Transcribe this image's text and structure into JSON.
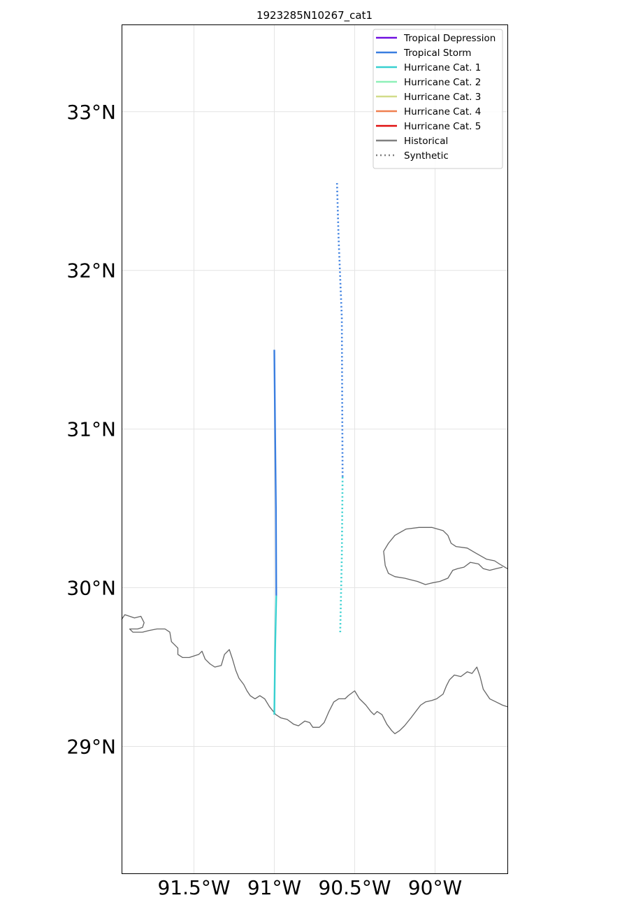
{
  "title": "1923285N10267_cat1",
  "map": {
    "lon_range": [
      -91.95,
      -89.55
    ],
    "lat_range": [
      28.2,
      33.55
    ],
    "grid": true,
    "lat_ticks": [
      {
        "value": 29,
        "label": "29°N"
      },
      {
        "value": 30,
        "label": "30°N"
      },
      {
        "value": 31,
        "label": "31°N"
      },
      {
        "value": 32,
        "label": "32°N"
      },
      {
        "value": 33,
        "label": "33°N"
      }
    ],
    "lon_ticks": [
      {
        "value": -91.5,
        "label": "91.5°W"
      },
      {
        "value": -91.0,
        "label": "91°W"
      },
      {
        "value": -90.5,
        "label": "90.5°W"
      },
      {
        "value": -90.0,
        "label": "90°W"
      }
    ]
  },
  "legend": {
    "placement": "top-right",
    "items": [
      {
        "label": "Tropical Depression",
        "color": "#7010e0",
        "style": "solid"
      },
      {
        "label": "Tropical Storm",
        "color": "#3a7ee0",
        "style": "solid"
      },
      {
        "label": "Hurricane Cat. 1",
        "color": "#38d0d0",
        "style": "solid"
      },
      {
        "label": "Hurricane Cat. 2",
        "color": "#8ef0b8",
        "style": "solid"
      },
      {
        "label": "Hurricane Cat. 3",
        "color": "#d2dc8a",
        "style": "solid"
      },
      {
        "label": "Hurricane Cat. 4",
        "color": "#f08050",
        "style": "solid"
      },
      {
        "label": "Hurricane Cat. 5",
        "color": "#e01010",
        "style": "solid"
      },
      {
        "label": "Historical",
        "color": "#808080",
        "style": "solid"
      },
      {
        "label": "Synthetic",
        "color": "#808080",
        "style": "dotted"
      }
    ]
  },
  "tracks": [
    {
      "type": "historical",
      "segments": [
        {
          "category": "Hurricane Cat. 1",
          "color": "#38d0d0",
          "points": [
            [
              -91.0,
              29.2
            ],
            [
              -90.995,
              29.6
            ],
            [
              -90.988,
              29.95
            ]
          ]
        },
        {
          "category": "Tropical Storm",
          "color": "#3a7ee0",
          "points": [
            [
              -90.988,
              29.95
            ],
            [
              -90.99,
              30.5
            ],
            [
              -90.995,
              31.0
            ],
            [
              -91.0,
              31.5
            ]
          ]
        }
      ]
    },
    {
      "type": "synthetic",
      "segments": [
        {
          "category": "Hurricane Cat. 1",
          "color": "#38d0d0",
          "points": [
            [
              -90.59,
              29.72
            ],
            [
              -90.58,
              30.2
            ],
            [
              -90.575,
              30.7
            ]
          ]
        },
        {
          "category": "Tropical Storm",
          "color": "#3a7ee0",
          "points": [
            [
              -90.575,
              30.7
            ],
            [
              -90.578,
              31.2
            ],
            [
              -90.58,
              31.7
            ],
            [
              -90.6,
              32.2
            ],
            [
              -90.61,
              32.55
            ]
          ]
        }
      ]
    }
  ],
  "coastline": [
    [
      [
        -91.95,
        29.8
      ],
      [
        -91.93,
        29.83
      ],
      [
        -91.9,
        29.82
      ],
      [
        -91.87,
        29.81
      ],
      [
        -91.83,
        29.82
      ],
      [
        -91.81,
        29.78
      ],
      [
        -91.82,
        29.75
      ],
      [
        -91.85,
        29.74
      ],
      [
        -91.88,
        29.74
      ],
      [
        -91.9,
        29.74
      ],
      [
        -91.88,
        29.72
      ],
      [
        -91.82,
        29.72
      ],
      [
        -91.78,
        29.73
      ],
      [
        -91.73,
        29.74
      ],
      [
        -91.68,
        29.74
      ],
      [
        -91.65,
        29.72
      ],
      [
        -91.64,
        29.66
      ],
      [
        -91.62,
        29.64
      ],
      [
        -91.6,
        29.62
      ],
      [
        -91.6,
        29.58
      ],
      [
        -91.57,
        29.56
      ],
      [
        -91.53,
        29.56
      ],
      [
        -91.5,
        29.57
      ],
      [
        -91.47,
        29.58
      ],
      [
        -91.45,
        29.6
      ],
      [
        -91.43,
        29.55
      ],
      [
        -91.4,
        29.52
      ],
      [
        -91.37,
        29.5
      ],
      [
        -91.33,
        29.51
      ],
      [
        -91.31,
        29.58
      ],
      [
        -91.28,
        29.61
      ],
      [
        -91.26,
        29.55
      ],
      [
        -91.24,
        29.48
      ],
      [
        -91.22,
        29.43
      ],
      [
        -91.19,
        29.39
      ],
      [
        -91.17,
        29.35
      ],
      [
        -91.15,
        29.32
      ],
      [
        -91.12,
        29.3
      ],
      [
        -91.09,
        29.32
      ],
      [
        -91.06,
        29.3
      ],
      [
        -91.03,
        29.25
      ],
      [
        -90.99,
        29.2
      ],
      [
        -90.96,
        29.18
      ],
      [
        -90.92,
        29.17
      ],
      [
        -90.88,
        29.14
      ],
      [
        -90.85,
        29.13
      ],
      [
        -90.81,
        29.16
      ],
      [
        -90.78,
        29.15
      ],
      [
        -90.76,
        29.12
      ],
      [
        -90.72,
        29.12
      ],
      [
        -90.69,
        29.15
      ],
      [
        -90.66,
        29.22
      ],
      [
        -90.63,
        29.28
      ],
      [
        -90.6,
        29.3
      ],
      [
        -90.56,
        29.3
      ],
      [
        -90.54,
        29.32
      ],
      [
        -90.5,
        29.35
      ],
      [
        -90.47,
        29.3
      ],
      [
        -90.45,
        29.28
      ],
      [
        -90.43,
        29.26
      ],
      [
        -90.4,
        29.22
      ],
      [
        -90.38,
        29.2
      ],
      [
        -90.36,
        29.22
      ],
      [
        -90.33,
        29.2
      ],
      [
        -90.3,
        29.14
      ],
      [
        -90.27,
        29.1
      ],
      [
        -90.25,
        29.08
      ],
      [
        -90.22,
        29.1
      ],
      [
        -90.19,
        29.13
      ],
      [
        -90.15,
        29.18
      ],
      [
        -90.12,
        29.22
      ],
      [
        -90.09,
        29.26
      ],
      [
        -90.06,
        29.28
      ],
      [
        -90.02,
        29.29
      ],
      [
        -89.99,
        29.3
      ],
      [
        -89.95,
        29.33
      ],
      [
        -89.93,
        29.38
      ],
      [
        -89.91,
        29.42
      ],
      [
        -89.88,
        29.45
      ],
      [
        -89.84,
        29.44
      ],
      [
        -89.8,
        29.47
      ],
      [
        -89.77,
        29.46
      ],
      [
        -89.74,
        29.5
      ],
      [
        -89.72,
        29.44
      ],
      [
        -89.7,
        29.36
      ],
      [
        -89.66,
        29.3
      ],
      [
        -89.62,
        29.28
      ],
      [
        -89.58,
        29.26
      ],
      [
        -89.55,
        29.25
      ]
    ],
    [
      [
        -89.55,
        30.12
      ],
      [
        -89.6,
        30.15
      ],
      [
        -89.63,
        30.17
      ],
      [
        -89.68,
        30.18
      ],
      [
        -89.75,
        30.22
      ],
      [
        -89.8,
        30.25
      ],
      [
        -89.87,
        30.26
      ],
      [
        -89.9,
        30.28
      ],
      [
        -89.92,
        30.33
      ],
      [
        -89.95,
        30.36
      ],
      [
        -90.02,
        30.38
      ],
      [
        -90.1,
        30.38
      ],
      [
        -90.18,
        30.37
      ],
      [
        -90.25,
        30.33
      ],
      [
        -90.29,
        30.28
      ],
      [
        -90.32,
        30.23
      ],
      [
        -90.31,
        30.14
      ],
      [
        -90.29,
        30.09
      ],
      [
        -90.25,
        30.07
      ],
      [
        -90.19,
        30.06
      ],
      [
        -90.15,
        30.05
      ],
      [
        -90.11,
        30.04
      ],
      [
        -90.06,
        30.02
      ],
      [
        -90.02,
        30.03
      ],
      [
        -89.97,
        30.04
      ],
      [
        -89.92,
        30.06
      ],
      [
        -89.89,
        30.11
      ],
      [
        -89.86,
        30.12
      ],
      [
        -89.82,
        30.13
      ],
      [
        -89.78,
        30.16
      ],
      [
        -89.73,
        30.15
      ],
      [
        -89.7,
        30.12
      ],
      [
        -89.66,
        30.11
      ],
      [
        -89.62,
        30.12
      ],
      [
        -89.58,
        30.13
      ]
    ]
  ]
}
